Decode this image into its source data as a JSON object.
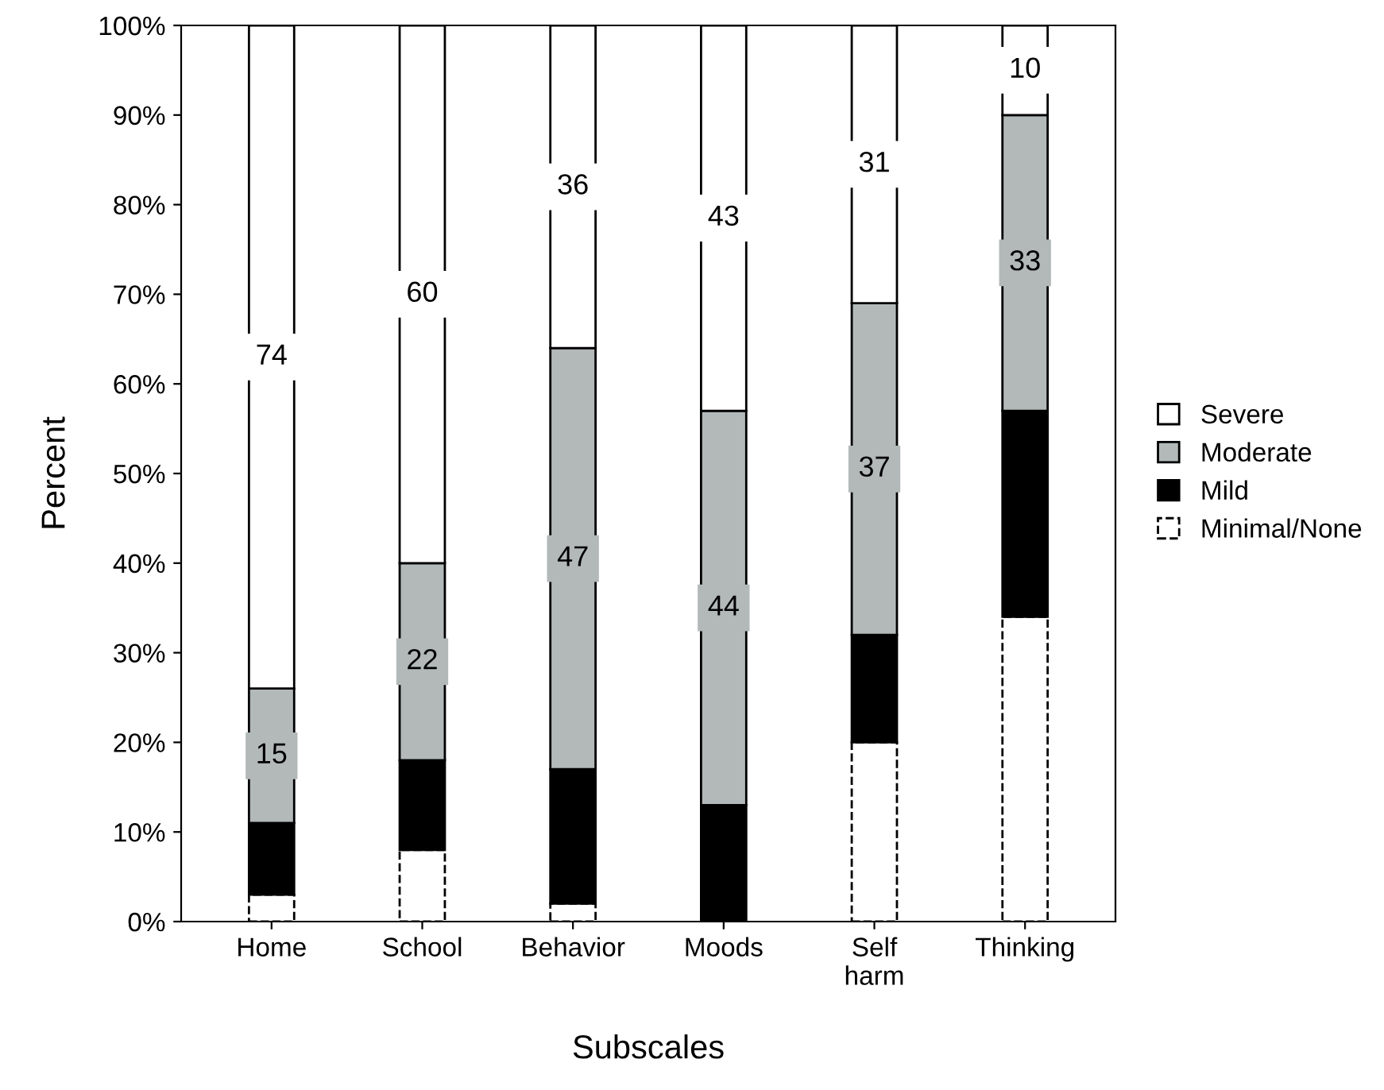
{
  "chart_data": {
    "type": "bar",
    "stacked": true,
    "xlabel": "Subscales",
    "ylabel": "Percent",
    "categories": [
      "Home",
      "School",
      "Behavior",
      "Moods",
      "Self\nharm",
      "Thinking"
    ],
    "series": [
      {
        "name": "Minimal/None",
        "color": "#ffffff",
        "line_style": "dashed",
        "values": [
          3,
          8,
          2,
          0,
          20,
          34
        ]
      },
      {
        "name": "Mild",
        "color": "#000000",
        "values": [
          8,
          10,
          15,
          13,
          12,
          23
        ]
      },
      {
        "name": "Moderate",
        "color": "#b3b9b9",
        "values": [
          15,
          22,
          47,
          44,
          37,
          33
        ],
        "value_labels": [
          "15",
          "22",
          "47",
          "44",
          "37",
          "33"
        ]
      },
      {
        "name": "Severe",
        "color": "#ffffff",
        "values": [
          74,
          60,
          36,
          43,
          31,
          10
        ],
        "value_labels": [
          "74",
          "60",
          "36",
          "43",
          "31",
          "10"
        ]
      }
    ],
    "ylim": [
      0,
      100
    ],
    "yticks": [
      {
        "value": 0,
        "label": "0%"
      },
      {
        "value": 10,
        "label": "10%"
      },
      {
        "value": 20,
        "label": "20%"
      },
      {
        "value": 30,
        "label": "30%"
      },
      {
        "value": 40,
        "label": "40%"
      },
      {
        "value": 50,
        "label": "50%"
      },
      {
        "value": 60,
        "label": "60%"
      },
      {
        "value": 70,
        "label": "70%"
      },
      {
        "value": 80,
        "label": "80%"
      },
      {
        "value": 90,
        "label": "90%"
      },
      {
        "value": 100,
        "label": "100%"
      }
    ],
    "grid": false,
    "legend": "right"
  }
}
